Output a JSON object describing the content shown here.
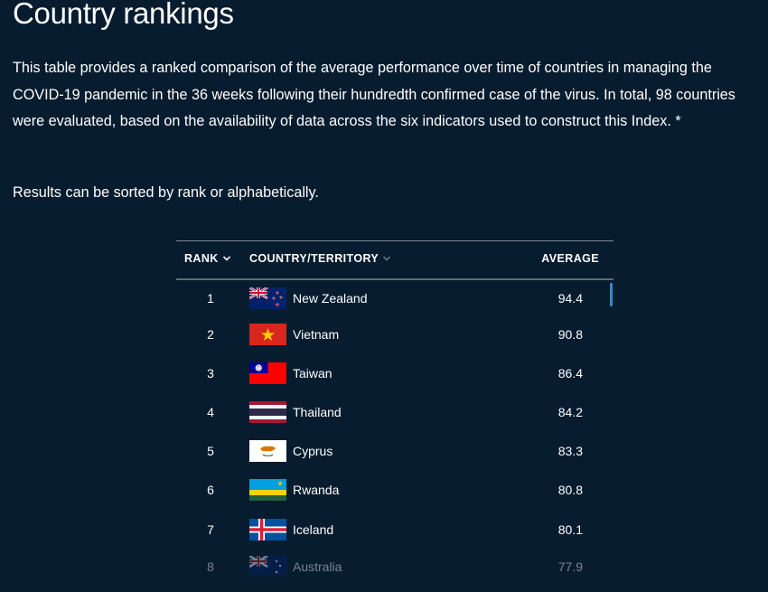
{
  "page": {
    "title": "Country rankings",
    "intro": "This table provides a ranked comparison of the average performance over time of countries in managing the COVID-19 pandemic in the 36 weeks following their hundredth confirmed case of the virus. In total, 98 countries were evaluated, based on the availability of data across the six indicators used to construct this Index. *",
    "sort_note": "Results can be sorted by rank or alphabetically."
  },
  "table": {
    "headers": {
      "rank": "RANK",
      "country": "COUNTRY/TERRITORY",
      "average": "AVERAGE"
    },
    "rows": [
      {
        "rank": "1",
        "country": "New Zealand",
        "average": "94.4",
        "flag": "new-zealand-flag-icon"
      },
      {
        "rank": "2",
        "country": "Vietnam",
        "average": "90.8",
        "flag": "vietnam-flag-icon"
      },
      {
        "rank": "3",
        "country": "Taiwan",
        "average": "86.4",
        "flag": "taiwan-flag-icon"
      },
      {
        "rank": "4",
        "country": "Thailand",
        "average": "84.2",
        "flag": "thailand-flag-icon"
      },
      {
        "rank": "5",
        "country": "Cyprus",
        "average": "83.3",
        "flag": "cyprus-flag-icon"
      },
      {
        "rank": "6",
        "country": "Rwanda",
        "average": "80.8",
        "flag": "rwanda-flag-icon"
      },
      {
        "rank": "7",
        "country": "Iceland",
        "average": "80.1",
        "flag": "iceland-flag-icon"
      },
      {
        "rank": "8",
        "country": "Australia",
        "average": "77.9",
        "flag": "australia-flag-icon"
      }
    ]
  },
  "colors": {
    "background": "#071c2e",
    "text": "#ffffff",
    "divider": "#5c6e7e",
    "scrollbar": "#3e87c4"
  }
}
